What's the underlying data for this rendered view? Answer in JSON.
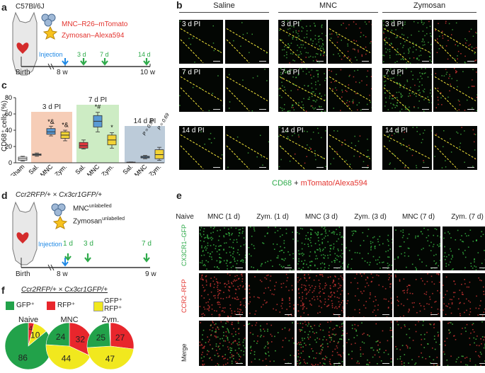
{
  "panel_a": {
    "letter": "a",
    "strain": "C57Bl/6J",
    "mnc_label": "MNC–R26–mTomato",
    "zym_label": "Zymosan–Alexa594",
    "injection": "Injection",
    "tp_3d": "3 d",
    "tp_7d": "7 d",
    "tp_14d": "14 d",
    "birth": "Birth",
    "week8": "8 w",
    "week10": "10 w"
  },
  "panel_b": {
    "letter": "b",
    "groups": [
      "Saline",
      "MNC",
      "Zymosan"
    ],
    "rows": [
      "3 d PI",
      "7 d PI",
      "14 d PI"
    ],
    "legend_green": "CD68",
    "legend_plus": " + ",
    "legend_red": "mTomato/Alexa594"
  },
  "panel_c": {
    "letter": "c",
    "ylabel": "CD68⁺ cells (%)",
    "groups": [
      "3 d PI",
      "7 d PI",
      "14 d PI"
    ],
    "sig_mnc3": "*&",
    "sig_zym3": "*&",
    "sig_mnc7": "*#",
    "sig_zym7": "*",
    "p1": "P = 0.95",
    "p2": "P = 0.69"
  },
  "chart_data": {
    "type": "box",
    "ylabel": "CD68⁺ cells (%)",
    "ylim": [
      0,
      80
    ],
    "yticks": [
      0,
      20,
      40,
      60,
      80
    ],
    "categories": [
      "Sham",
      "Sal.",
      "MNC",
      "Zym.",
      "Sal.",
      "MNC",
      "Zym.",
      "Sal.",
      "MNC",
      "Zym."
    ],
    "colors": [
      "#ffffff",
      "#ffffff",
      "#5b9bd5",
      "#f2d335",
      "#e0393e",
      "#5b9bd5",
      "#f2d335",
      "#e0393e",
      "#5b9bd5",
      "#f2d335"
    ],
    "boxes": [
      {
        "min": 2,
        "q1": 3,
        "median": 5,
        "q3": 7,
        "max": 8
      },
      {
        "min": 8,
        "q1": 9,
        "median": 10,
        "q3": 11,
        "max": 12
      },
      {
        "min": 33,
        "q1": 35,
        "median": 38,
        "q3": 42,
        "max": 45
      },
      {
        "min": 27,
        "q1": 30,
        "median": 34,
        "q3": 38,
        "max": 40
      },
      {
        "min": 17,
        "q1": 18,
        "median": 21,
        "q3": 25,
        "max": 28
      },
      {
        "min": 38,
        "q1": 44,
        "median": 51,
        "q3": 58,
        "max": 62
      },
      {
        "min": 18,
        "q1": 22,
        "median": 28,
        "q3": 34,
        "max": 37
      },
      {
        "min": 0,
        "q1": 0.3,
        "median": 0.5,
        "q3": 0.8,
        "max": 1
      },
      {
        "min": 5,
        "q1": 6,
        "median": 7,
        "q3": 8,
        "max": 9
      },
      {
        "min": 3,
        "q1": 5,
        "median": 10,
        "q3": 16,
        "max": 19
      }
    ]
  },
  "panel_d": {
    "letter": "d",
    "cross": "Ccr2RFP/+ × Cx3cr1GFP/+",
    "mnc_label": "MNC",
    "mnc_sup": "unlabelled",
    "zym_label": "Zymosan",
    "zym_sup": "unlabelled",
    "injection": "Injection",
    "tp_1d": "1 d",
    "tp_3d": "3 d",
    "tp_7d": "7 d",
    "birth": "Birth",
    "week8": "8 w",
    "week9": "9 w"
  },
  "panel_e": {
    "letter": "e",
    "columns": [
      "Naive",
      "MNC (1 d)",
      "Zym. (1 d)",
      "MNC (3 d)",
      "Zym. (3 d)",
      "MNC (7 d)",
      "Zym. (7 d)"
    ],
    "row_gfp": "CX3CR1–GFP",
    "row_rfp": "CCR2–RFP",
    "row_merge": "Merge"
  },
  "panel_f": {
    "letter": "f",
    "cross": "Ccr2RFP/+ × Cx3cr1GFP/+",
    "legend": [
      "GFP⁺",
      "RFP⁺",
      "GFP⁺ RFP⁺"
    ],
    "colors": {
      "gfp": "#22a24a",
      "rfp": "#e8262c",
      "both": "#f1e81e"
    },
    "pies": [
      {
        "title": "Naive",
        "gfp": 86,
        "rfp": 4,
        "both": 10
      },
      {
        "title": "MNC",
        "gfp": 24,
        "rfp": 32,
        "both": 44
      },
      {
        "title": "Zym.",
        "gfp": 25,
        "rfp": 27,
        "both": 47
      }
    ]
  }
}
